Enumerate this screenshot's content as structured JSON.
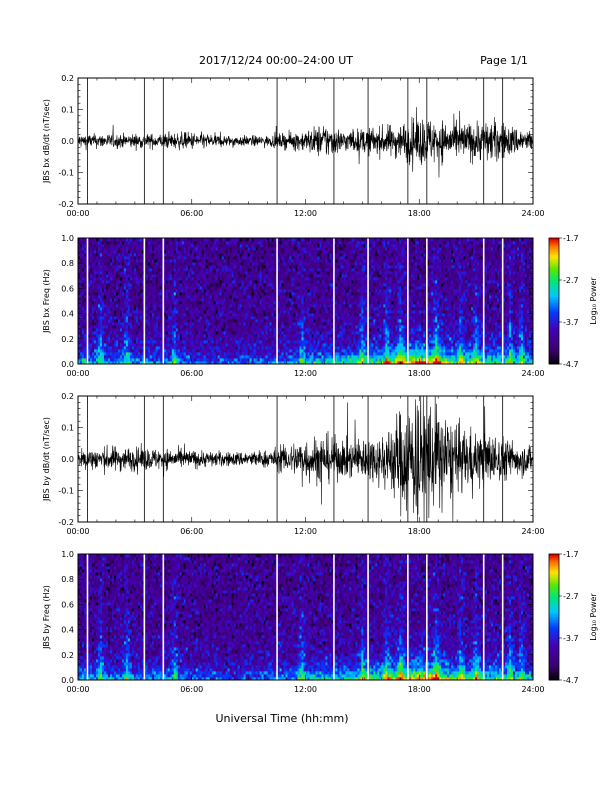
{
  "header": {
    "title": "2017/12/24  00:00–24:00 UT",
    "page_label": "Page 1/1"
  },
  "footer": {
    "xlabel": "Universal Time (hh:mm)"
  },
  "colors": {
    "trace": "#000000",
    "gap_line_waveform": "#000000",
    "gap_line_spectrogram": "#ffffff",
    "frame": "#000000"
  },
  "chart_data": [
    {
      "type": "line",
      "panel": "bx waveform",
      "ylabel": "JBS bx dB/dt (nT/sec)",
      "xlim": [
        0,
        24
      ],
      "ylim": [
        -0.2,
        0.2
      ],
      "x_ticks": [
        "00:00",
        "06:00",
        "12:00",
        "18:00",
        "24:00"
      ],
      "y_ticks": [
        "-0.2",
        "-0.1",
        "0.0",
        "0.1",
        "0.2"
      ],
      "data_gaps_hours": [
        0.5,
        3.5,
        4.5,
        10.5,
        13.5,
        15.3,
        17.4,
        18.4,
        21.4,
        22.4
      ],
      "envelope": {
        "x_hours": [
          0,
          2,
          4,
          6,
          8,
          10,
          12,
          13,
          14,
          16,
          17,
          18,
          19,
          20,
          22,
          23,
          24
        ],
        "half_amplitude": [
          0.02,
          0.02,
          0.02,
          0.025,
          0.015,
          0.015,
          0.03,
          0.05,
          0.03,
          0.04,
          0.05,
          0.07,
          0.06,
          0.05,
          0.06,
          0.04,
          0.03
        ]
      }
    },
    {
      "type": "heatmap",
      "panel": "bx spectrogram",
      "ylabel": "JBS bx Freq (Hz)",
      "xlim": [
        0,
        24
      ],
      "ylim": [
        0.0,
        1.0
      ],
      "x_ticks": [
        "00:00",
        "06:00",
        "12:00",
        "18:00",
        "24:00"
      ],
      "y_ticks": [
        "0.0",
        "0.2",
        "0.4",
        "0.6",
        "0.8",
        "1.0"
      ],
      "colorbar": {
        "label": "Log₁₀ Power",
        "ticks": [
          "-1.7",
          "-2.7",
          "-3.7",
          "-4.7"
        ],
        "range": [
          -4.7,
          -1.7
        ]
      },
      "data_gaps_hours": [
        0.5,
        3.5,
        4.5,
        10.5,
        13.5,
        15.3,
        17.4,
        18.4,
        21.4,
        22.4
      ]
    },
    {
      "type": "line",
      "panel": "by waveform",
      "ylabel": "JBS by dB/dt (nT/sec)",
      "xlim": [
        0,
        24
      ],
      "ylim": [
        -0.2,
        0.2
      ],
      "x_ticks": [
        "00:00",
        "06:00",
        "12:00",
        "18:00",
        "24:00"
      ],
      "y_ticks": [
        "-0.2",
        "-0.1",
        "0.0",
        "0.1",
        "0.2"
      ],
      "data_gaps_hours": [
        0.5,
        3.5,
        4.5,
        10.5,
        13.5,
        15.3,
        17.4,
        18.4,
        21.4,
        22.4
      ],
      "envelope": {
        "x_hours": [
          0,
          2,
          4,
          6,
          8,
          10,
          11,
          12,
          13,
          14,
          16,
          17,
          18,
          19,
          20,
          22,
          23,
          24
        ],
        "half_amplitude": [
          0.03,
          0.035,
          0.03,
          0.025,
          0.02,
          0.025,
          0.04,
          0.06,
          0.07,
          0.05,
          0.07,
          0.14,
          0.2,
          0.15,
          0.09,
          0.07,
          0.05,
          0.04
        ]
      }
    },
    {
      "type": "heatmap",
      "panel": "by spectrogram",
      "ylabel": "JBS by Freq (Hz)",
      "xlim": [
        0,
        24
      ],
      "ylim": [
        0.0,
        1.0
      ],
      "x_ticks": [
        "00:00",
        "06:00",
        "12:00",
        "18:00",
        "24:00"
      ],
      "y_ticks": [
        "0.0",
        "0.2",
        "0.4",
        "0.6",
        "0.8",
        "1.0"
      ],
      "colorbar": {
        "label": "Log₁₀ Power",
        "ticks": [
          "-1.7",
          "-2.7",
          "-3.7",
          "-4.7"
        ],
        "range": [
          -4.7,
          -1.7
        ]
      },
      "data_gaps_hours": [
        0.5,
        3.5,
        4.5,
        10.5,
        13.5,
        15.3,
        17.4,
        18.4,
        21.4,
        22.4
      ]
    }
  ]
}
